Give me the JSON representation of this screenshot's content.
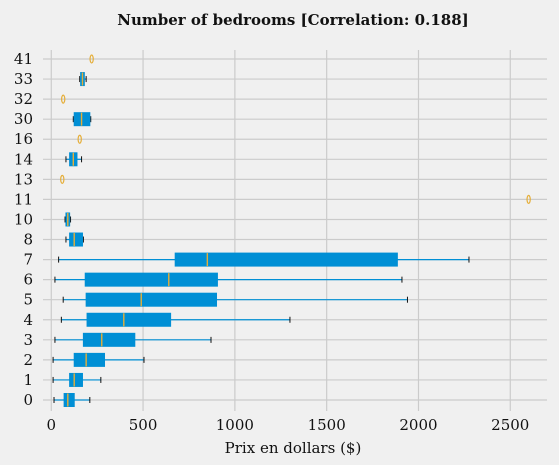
{
  "chart_data": {
    "type": "boxplot",
    "orientation": "horizontal",
    "title": "Number of bedrooms  [Correlation: 0.188]",
    "xlabel": "Prix  en dollars ($)",
    "ylabel": "",
    "xlim": [
      -45,
      2700
    ],
    "xticks": [
      0,
      500,
      1000,
      1500,
      2000,
      2500
    ],
    "grid": true,
    "colors": {
      "box": "#008fd5",
      "median": "#e5ae38",
      "whisker": "#008fd5",
      "flier": "#e5ae38",
      "background": "#f0f0f0",
      "grid": "#cbcbcb"
    },
    "categories": [
      "0",
      "1",
      "2",
      "3",
      "4",
      "5",
      "6",
      "7",
      "8",
      "10",
      "11",
      "13",
      "14",
      "16",
      "30",
      "32",
      "33",
      "41"
    ],
    "boxes": [
      {
        "category": "0",
        "whisker_low": 15,
        "q1": 70,
        "median": 90,
        "q3": 125,
        "whisker_high": 210
      },
      {
        "category": "1",
        "whisker_low": 10,
        "q1": 100,
        "median": 125,
        "q3": 170,
        "whisker_high": 270
      },
      {
        "category": "2",
        "whisker_low": 10,
        "q1": 125,
        "median": 190,
        "q3": 290,
        "whisker_high": 505
      },
      {
        "category": "3",
        "whisker_low": 20,
        "q1": 175,
        "median": 275,
        "q3": 455,
        "whisker_high": 870
      },
      {
        "category": "4",
        "whisker_low": 55,
        "q1": 195,
        "median": 395,
        "q3": 650,
        "whisker_high": 1300
      },
      {
        "category": "5",
        "whisker_low": 65,
        "q1": 190,
        "median": 490,
        "q3": 900,
        "whisker_high": 1940
      },
      {
        "category": "6",
        "whisker_low": 20,
        "q1": 185,
        "median": 640,
        "q3": 905,
        "whisker_high": 1910
      },
      {
        "category": "7",
        "whisker_low": 40,
        "q1": 675,
        "median": 850,
        "q3": 1885,
        "whisker_high": 2275
      },
      {
        "category": "8",
        "whisker_low": 80,
        "q1": 100,
        "median": 125,
        "q3": 170,
        "whisker_high": 175
      },
      {
        "category": "10",
        "whisker_low": 75,
        "q1": 80,
        "median": 90,
        "q3": 100,
        "whisker_high": 105
      },
      {
        "category": "11",
        "flier": 2600
      },
      {
        "category": "13",
        "flier": 60
      },
      {
        "category": "14",
        "whisker_low": 80,
        "q1": 100,
        "median": 120,
        "q3": 140,
        "whisker_high": 165
      },
      {
        "category": "16",
        "flier": 155
      },
      {
        "category": "30",
        "whisker_low": 120,
        "q1": 125,
        "median": 165,
        "q3": 210,
        "whisker_high": 215
      },
      {
        "category": "32",
        "flier": 65
      },
      {
        "category": "33",
        "whisker_low": 155,
        "q1": 160,
        "median": 170,
        "q3": 180,
        "whisker_high": 190
      },
      {
        "category": "41",
        "flier": 220
      }
    ]
  }
}
